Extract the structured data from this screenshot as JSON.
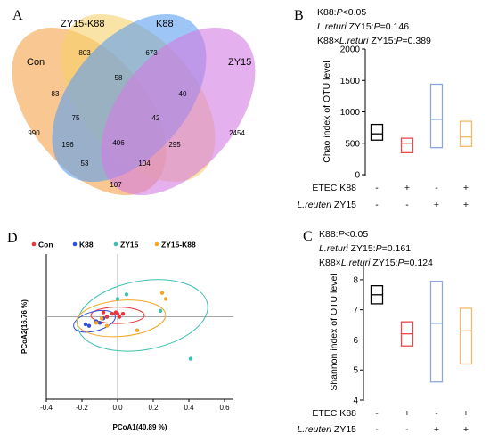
{
  "panel_letters": {
    "a": "A",
    "b": "B",
    "c": "C",
    "d": "D"
  },
  "colors": {
    "con": "#f4a24a",
    "k88": "#5b9ff0",
    "zy15": "#d47be3",
    "zy15k88": "#f7d06a",
    "black": "#000000",
    "red": "#e8343a",
    "blue": "#2f4fd8",
    "teal": "#3ebfb1",
    "orange": "#f5a623",
    "boxBlack": "#000000",
    "boxRed": "#e84a4a",
    "boxBlue": "#8aa8d8",
    "boxOrange": "#f4b86a"
  },
  "chart_data": [
    {
      "type": "venn",
      "panel": "A",
      "sets": [
        "Con",
        "ZY15-K88",
        "K88",
        "ZY15"
      ],
      "regions": [
        {
          "sets": [
            "Con"
          ],
          "value": 990
        },
        {
          "sets": [
            "ZY15-K88"
          ],
          "value": 803
        },
        {
          "sets": [
            "K88"
          ],
          "value": 673
        },
        {
          "sets": [
            "ZY15"
          ],
          "value": 2454
        },
        {
          "sets": [
            "Con",
            "ZY15-K88"
          ],
          "value": 83
        },
        {
          "sets": [
            "ZY15-K88",
            "K88"
          ],
          "value": 58
        },
        {
          "sets": [
            "K88",
            "ZY15"
          ],
          "value": 40
        },
        {
          "sets": [
            "Con",
            "ZY15-K88",
            "K88"
          ],
          "value": 75
        },
        {
          "sets": [
            "ZY15-K88",
            "K88",
            "ZY15"
          ],
          "value": 42
        },
        {
          "sets": [
            "Con",
            "K88"
          ],
          "value": 196
        },
        {
          "sets": [
            "Con",
            "ZY15-K88",
            "K88",
            "ZY15"
          ],
          "value": 406
        },
        {
          "sets": [
            "ZY15-K88",
            "ZY15"
          ],
          "value": 295
        },
        {
          "sets": [
            "Con",
            "K88",
            "ZY15"
          ],
          "value": 53
        },
        {
          "sets": [
            "Con",
            "ZY15-K88",
            "ZY15"
          ],
          "value": 104
        },
        {
          "sets": [
            "Con",
            "ZY15"
          ],
          "value": 107
        }
      ]
    },
    {
      "type": "box",
      "panel": "B",
      "stats": [
        "K88:P<0.05",
        "L.returi ZY15:P=0.146",
        "K88×L.returi ZY15:P=0.389"
      ],
      "ylabel": "Chao index of OTU level",
      "ylim": [
        0,
        2000
      ],
      "yticks": [
        0,
        500,
        1000,
        1500,
        2000
      ],
      "row_labels": [
        "ETEC K88",
        "L.reuteri ZY15"
      ],
      "groups": [
        {
          "k88": "-",
          "zy15": "-",
          "low": 550,
          "median": 650,
          "high": 800,
          "color": "boxBlack"
        },
        {
          "k88": "+",
          "zy15": "-",
          "low": 350,
          "median": 500,
          "high": 580,
          "color": "boxRed"
        },
        {
          "k88": "-",
          "zy15": "+",
          "low": 430,
          "median": 880,
          "high": 1440,
          "color": "boxBlue"
        },
        {
          "k88": "+",
          "zy15": "+",
          "low": 450,
          "median": 600,
          "high": 850,
          "color": "boxOrange"
        }
      ]
    },
    {
      "type": "box",
      "panel": "C",
      "stats": [
        "K88:P<0.05",
        "L.returi ZY15:P=0.161",
        "K88×L.returi ZY15:P=0.124"
      ],
      "ylabel": "Shannon index of OTU level",
      "ylim": [
        4,
        8.5
      ],
      "yticks": [
        4,
        5,
        6,
        7,
        8
      ],
      "row_labels": [
        "ETEC K88",
        "L.reuteri ZY15"
      ],
      "groups": [
        {
          "k88": "-",
          "zy15": "-",
          "low": 7.2,
          "median": 7.5,
          "high": 7.8,
          "color": "boxBlack"
        },
        {
          "k88": "+",
          "zy15": "-",
          "low": 5.8,
          "median": 6.2,
          "high": 6.6,
          "color": "boxRed"
        },
        {
          "k88": "-",
          "zy15": "+",
          "low": 4.6,
          "median": 6.55,
          "high": 7.95,
          "color": "boxBlue"
        },
        {
          "k88": "+",
          "zy15": "+",
          "low": 5.2,
          "median": 6.3,
          "high": 7.05,
          "color": "boxOrange"
        }
      ]
    },
    {
      "type": "scatter",
      "panel": "D",
      "xlabel": "PCoA1(40.89 %)",
      "ylabel": "PCoA2(16.76 %)",
      "xlim": [
        -0.4,
        0.65
      ],
      "ylim": [
        -0.55,
        0.42
      ],
      "xticks": [
        "-0.4",
        "-0.2",
        "0.0",
        "0.2",
        "0.4",
        "0.6"
      ],
      "legend": [
        "Con",
        "K88",
        "ZY15",
        "ZY15-K88"
      ],
      "series": [
        {
          "name": "Con",
          "color": "red",
          "x": [
            -0.06,
            -0.01,
            0.01,
            0.03,
            -0.03,
            0.0,
            -0.08
          ],
          "y": [
            0.0,
            0.03,
            0.0,
            0.02,
            0.02,
            0.02,
            0.03
          ],
          "ellipse": {
            "cx": 0.0,
            "cy": 0.01,
            "rx": 0.15,
            "ry": 0.055,
            "angle": 0
          }
        },
        {
          "name": "K88",
          "color": "blue",
          "x": [
            -0.18,
            -0.16,
            -0.12,
            -0.1,
            -0.08
          ],
          "y": [
            -0.05,
            -0.06,
            -0.03,
            -0.04,
            -0.01
          ],
          "ellipse": {
            "cx": -0.13,
            "cy": -0.03,
            "rx": 0.12,
            "ry": 0.065,
            "angle": -15
          }
        },
        {
          "name": "ZY15",
          "color": "teal",
          "x": [
            0.05,
            0.24,
            0.0,
            0.41
          ],
          "y": [
            0.15,
            0.04,
            0.12,
            -0.28
          ],
          "ellipse": {
            "cx": 0.14,
            "cy": 0.01,
            "rx": 0.37,
            "ry": 0.23,
            "angle": -10
          }
        },
        {
          "name": "ZY15-K88",
          "color": "orange",
          "x": [
            0.25,
            0.27,
            -0.09,
            -0.12,
            -0.06,
            0.11
          ],
          "y": [
            0.16,
            0.12,
            -0.01,
            -0.04,
            -0.06,
            -0.09
          ],
          "ellipse": {
            "cx": 0.02,
            "cy": -0.01,
            "rx": 0.25,
            "ry": 0.12,
            "angle": -5
          }
        }
      ]
    }
  ]
}
